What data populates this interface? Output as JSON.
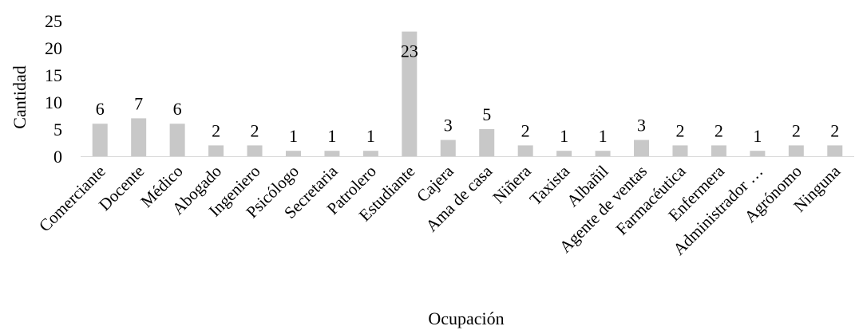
{
  "chart_data": {
    "type": "bar",
    "title": "",
    "xlabel": "Ocupación",
    "ylabel": "Cantidad",
    "ylim": [
      0,
      25
    ],
    "yticks": [
      0,
      5,
      10,
      15,
      20,
      25
    ],
    "grid": false,
    "legend": "none",
    "bar_color": "#c8c8c8",
    "categories": [
      "Comerciante",
      "Docente",
      "Médico",
      "Abogado",
      "Ingeniero",
      "Psicólogo",
      "Secretaria",
      "Patrolero",
      "Estudiante",
      "Cajera",
      "Ama de casa",
      "Niñera",
      "Taxista",
      "Albañil",
      "Agente de ventas",
      "Farmacéutica",
      "Enfermera",
      "Administrador …",
      "Agrónomo",
      "Ninguna"
    ],
    "values": [
      6,
      7,
      6,
      2,
      2,
      1,
      1,
      1,
      23,
      3,
      5,
      2,
      1,
      1,
      3,
      2,
      2,
      1,
      2,
      2
    ]
  }
}
